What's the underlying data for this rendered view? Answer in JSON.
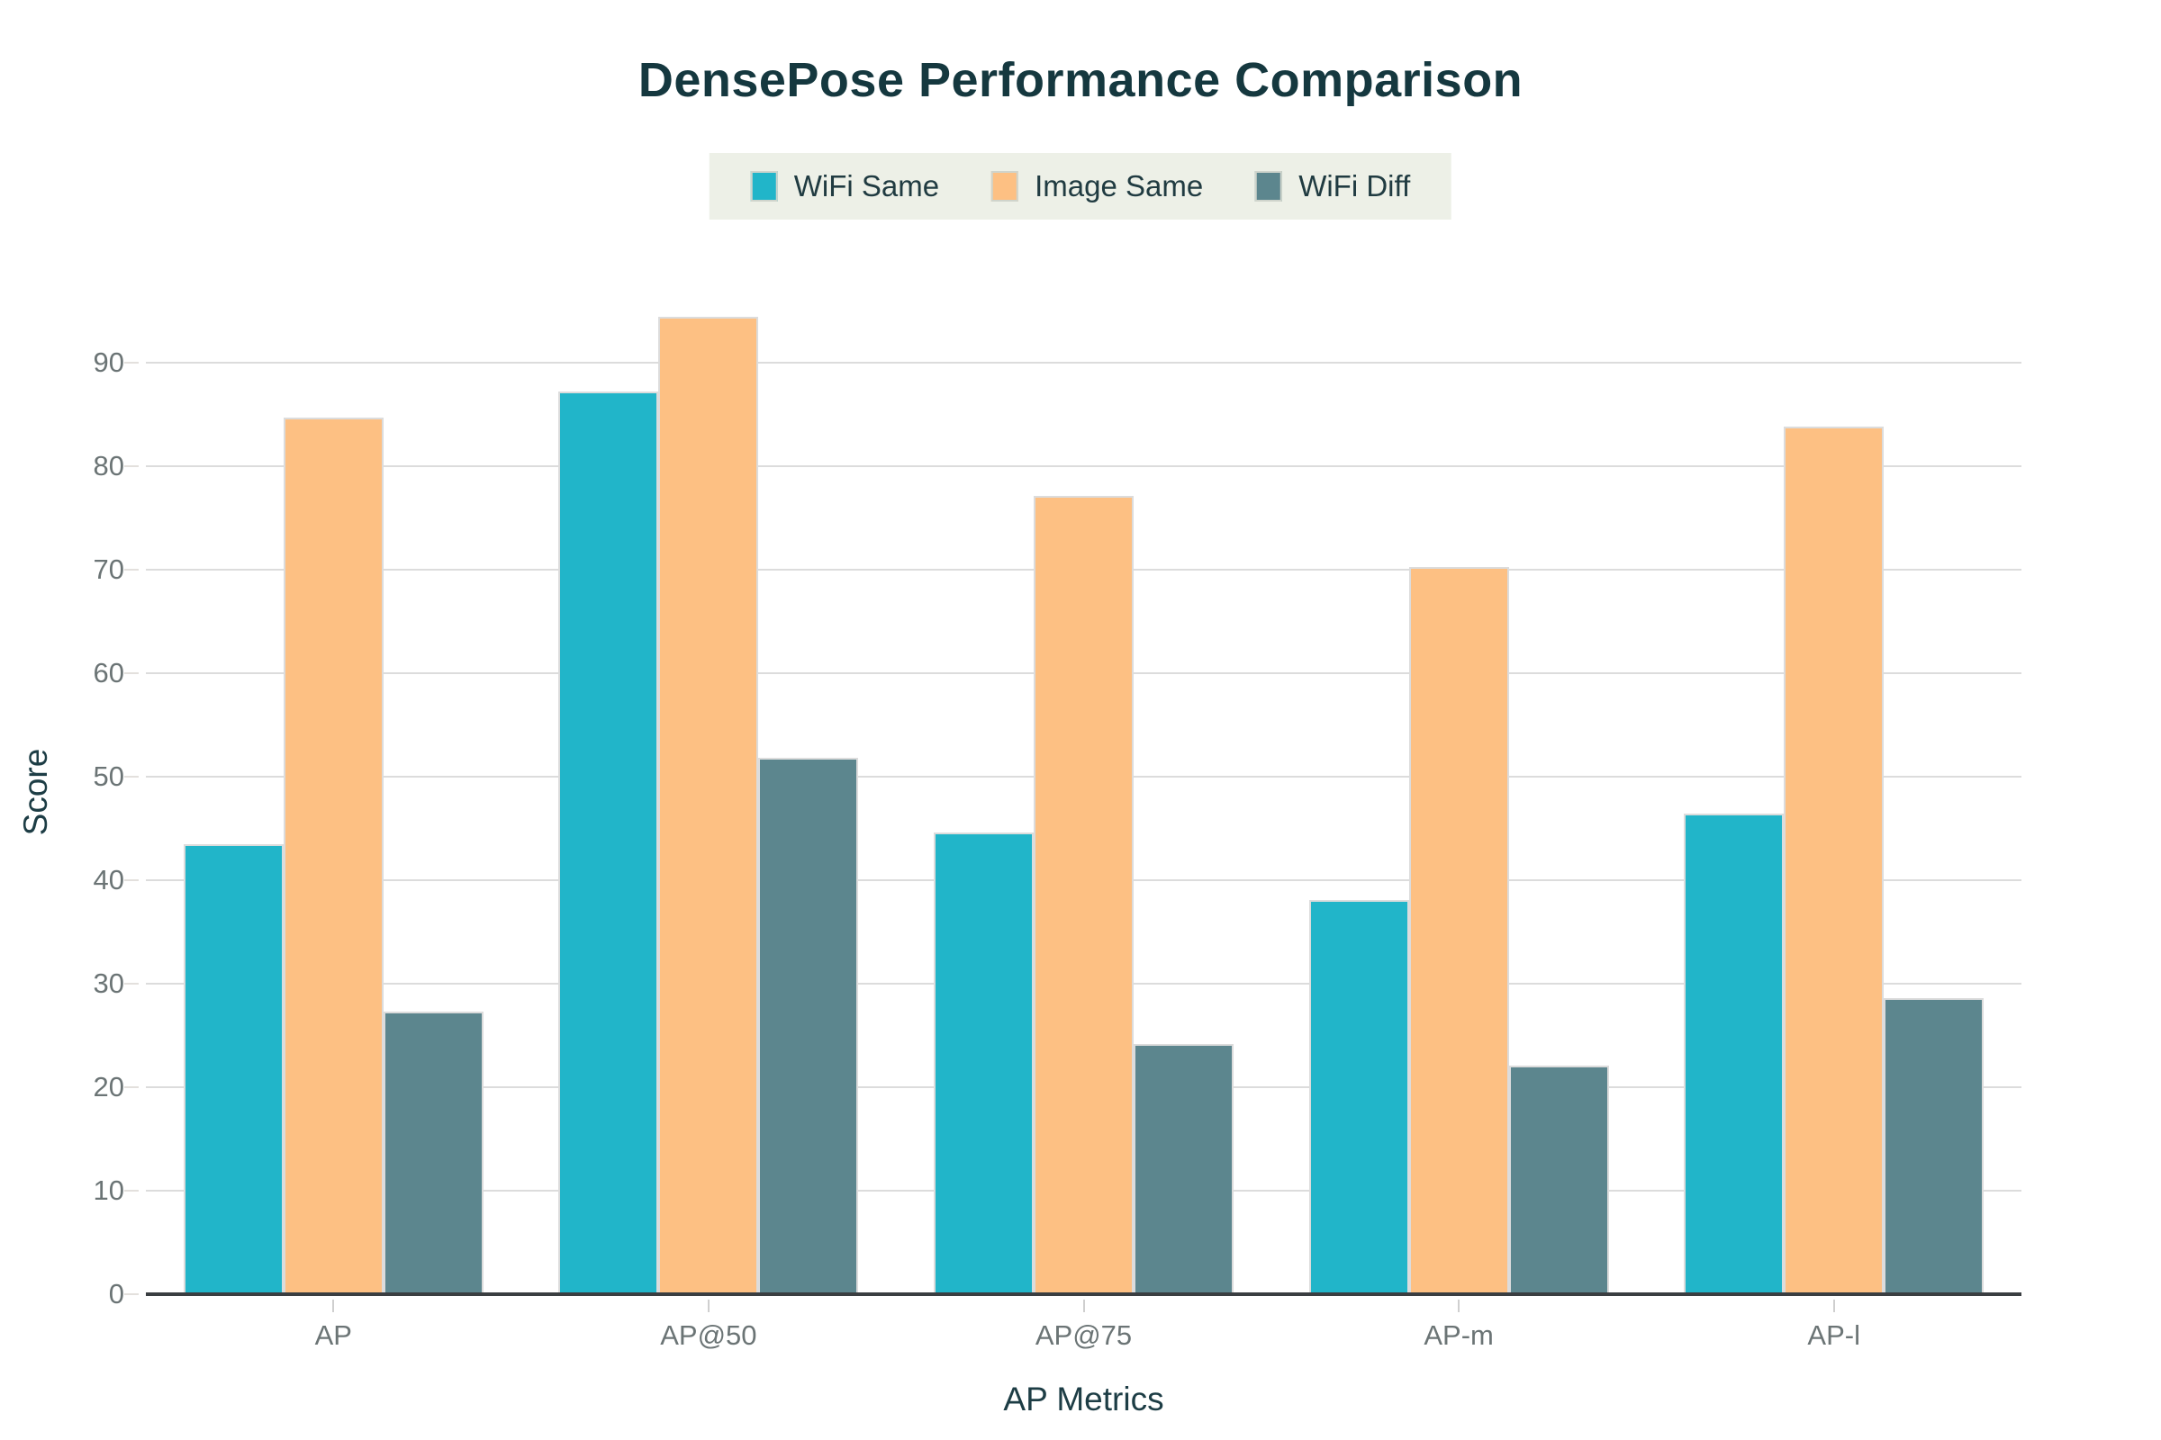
{
  "colors": {
    "title": "#15383f",
    "axis_title": "#1d3d45",
    "tick_label": "#6b7475",
    "legend_text": "#203b41",
    "legend_bg": "#edf0e7",
    "gridline": "#dcdcdc",
    "axis_line": "#3a3e41"
  },
  "chart_data": {
    "type": "bar",
    "title": "DensePose Performance Comparison",
    "xlabel": "AP Metrics",
    "ylabel": "Score",
    "categories": [
      "AP",
      "AP@50",
      "AP@75",
      "AP-m",
      "AP-l"
    ],
    "series": [
      {
        "name": "WiFi Same",
        "color": "#21b5c9",
        "values": [
          43.5,
          87.2,
          44.6,
          38.1,
          46.4
        ]
      },
      {
        "name": "Image Same",
        "color": "#fdc083",
        "values": [
          84.7,
          94.4,
          77.1,
          70.3,
          83.8
        ]
      },
      {
        "name": "WiFi Diff",
        "color": "#5c868e",
        "values": [
          27.3,
          51.8,
          24.2,
          22.1,
          28.6
        ]
      }
    ],
    "y_ticks": [
      0,
      10,
      20,
      30,
      40,
      50,
      60,
      70,
      80,
      90
    ],
    "ylim": [
      0,
      95.5
    ],
    "grid": true,
    "legend_position": "top-center"
  }
}
